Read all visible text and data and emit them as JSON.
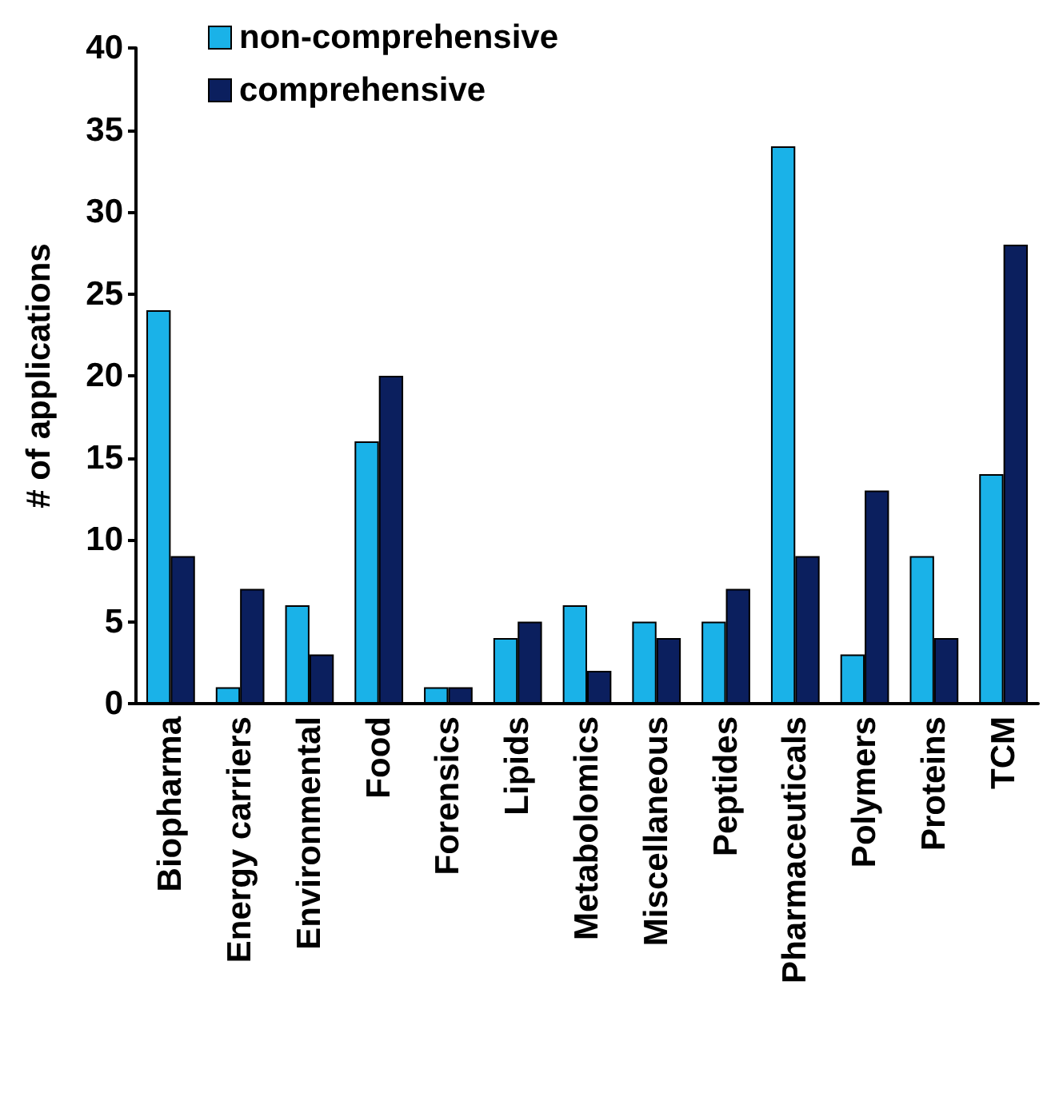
{
  "chart_data": {
    "type": "bar",
    "ylabel": "# of applications",
    "categories": [
      "Biopharma",
      "Energy carriers",
      "Environmental",
      "Food",
      "Forensics",
      "Lipids",
      "Metabolomics",
      "Miscellaneous",
      "Peptides",
      "Pharmaceuticals",
      "Polymers",
      "Proteins",
      "TCM"
    ],
    "series": [
      {
        "name": "non-comprehensive",
        "color": "#1ab2e8",
        "values": [
          24,
          1,
          6,
          16,
          1,
          4,
          6,
          5,
          5,
          34,
          3,
          9,
          14
        ]
      },
      {
        "name": "comprehensive",
        "color": "#0b1f5e",
        "values": [
          9,
          7,
          3,
          20,
          1,
          5,
          2,
          4,
          7,
          9,
          13,
          4,
          28
        ]
      }
    ],
    "ylim": [
      0,
      40
    ],
    "yticks": [
      0,
      5,
      10,
      15,
      20,
      25,
      30,
      35,
      40
    ],
    "grid": false,
    "legend": "top left"
  }
}
